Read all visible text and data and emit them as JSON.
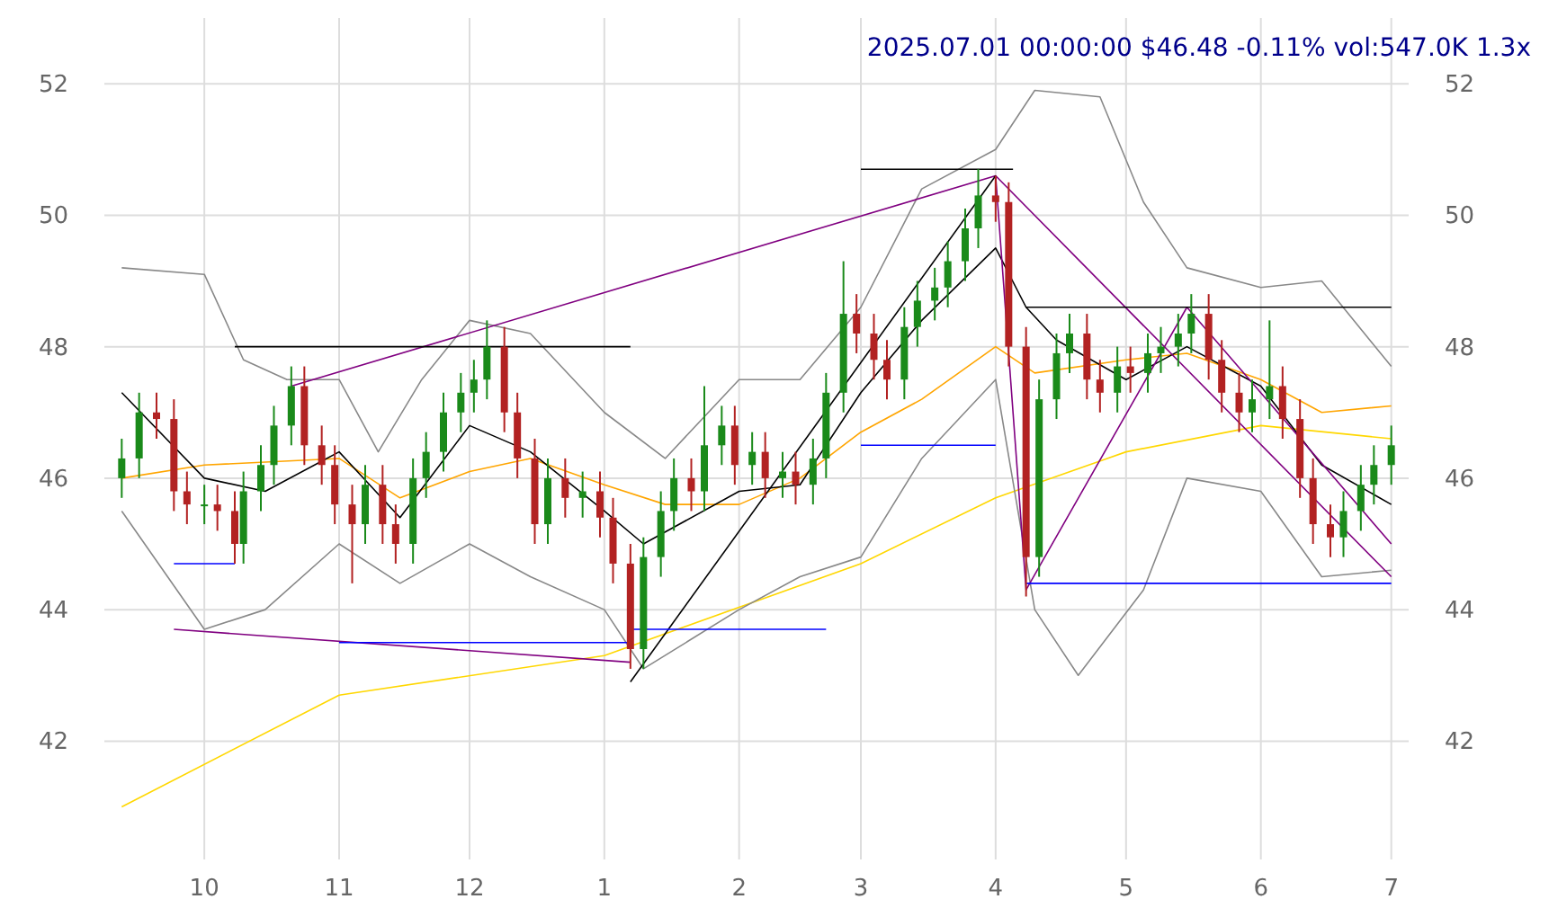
{
  "chart_data": {
    "type": "candlestick",
    "title": "2025.07.01 00:00:00 $46.48 -0.11% vol:547.0K 1.3x",
    "x": [
      "2024-09-12",
      "2024-09-16",
      "2024-09-20",
      "2024-09-24",
      "2024-09-27",
      "2024-10-01",
      "2024-10-04",
      "2024-10-08",
      "2024-10-10",
      "2024-10-14",
      "2024-10-17",
      "2024-10-21",
      "2024-10-24",
      "2024-10-28",
      "2024-10-31",
      "2024-11-04",
      "2024-11-07",
      "2024-11-11",
      "2024-11-14",
      "2024-11-18",
      "2024-11-21",
      "2024-11-25",
      "2024-11-29",
      "2024-12-02",
      "2024-12-05",
      "2024-12-09",
      "2024-12-12",
      "2024-12-16",
      "2024-12-19",
      "2024-12-23",
      "2024-12-27",
      "2024-12-31",
      "2025-01-03",
      "2025-01-07",
      "2025-01-10",
      "2025-01-14",
      "2025-01-17",
      "2025-01-21",
      "2025-01-24",
      "2025-01-28",
      "2025-01-31",
      "2025-02-04",
      "2025-02-07",
      "2025-02-11",
      "2025-02-14",
      "2025-02-18",
      "2025-02-21",
      "2025-02-25",
      "2025-02-28",
      "2025-03-04",
      "2025-03-07",
      "2025-03-11",
      "2025-03-14",
      "2025-03-18",
      "2025-03-21",
      "2025-03-25",
      "2025-03-28",
      "2025-04-01",
      "2025-04-04",
      "2025-04-08",
      "2025-04-11",
      "2025-04-15",
      "2025-04-18",
      "2025-04-22",
      "2025-04-25",
      "2025-04-29",
      "2025-05-02",
      "2025-05-06",
      "2025-05-09",
      "2025-05-13",
      "2025-05-16",
      "2025-05-20",
      "2025-05-23",
      "2025-05-27",
      "2025-05-30",
      "2025-06-03",
      "2025-06-06",
      "2025-06-10",
      "2025-06-13",
      "2025-06-17",
      "2025-06-20",
      "2025-06-24",
      "2025-06-27",
      "2025-07-01"
    ],
    "ohlc": [
      [
        46.0,
        46.6,
        45.7,
        46.3
      ],
      [
        46.3,
        47.3,
        46.0,
        47.0
      ],
      [
        47.0,
        47.3,
        46.6,
        46.9
      ],
      [
        46.9,
        47.2,
        45.5,
        45.8
      ],
      [
        45.8,
        46.1,
        45.3,
        45.6
      ],
      [
        45.6,
        45.9,
        45.3,
        45.6
      ],
      [
        45.6,
        45.9,
        45.2,
        45.5
      ],
      [
        45.5,
        45.8,
        44.7,
        45.0
      ],
      [
        45.0,
        46.1,
        44.7,
        45.8
      ],
      [
        45.8,
        46.5,
        45.5,
        46.2
      ],
      [
        46.2,
        47.1,
        45.9,
        46.8
      ],
      [
        46.8,
        47.7,
        46.5,
        47.4
      ],
      [
        47.4,
        47.7,
        46.2,
        46.5
      ],
      [
        46.5,
        46.8,
        45.9,
        46.2
      ],
      [
        46.2,
        46.5,
        45.3,
        45.6
      ],
      [
        45.6,
        45.9,
        44.4,
        45.3
      ],
      [
        45.3,
        46.2,
        45.0,
        45.9
      ],
      [
        45.9,
        46.2,
        45.0,
        45.3
      ],
      [
        45.3,
        45.6,
        44.7,
        45.0
      ],
      [
        45.0,
        46.3,
        44.7,
        46.0
      ],
      [
        46.0,
        46.7,
        45.7,
        46.4
      ],
      [
        46.4,
        47.3,
        46.1,
        47.0
      ],
      [
        47.0,
        47.6,
        46.7,
        47.3
      ],
      [
        47.3,
        47.8,
        47.0,
        47.5
      ],
      [
        47.5,
        48.4,
        47.2,
        48.0
      ],
      [
        48.0,
        48.3,
        46.7,
        47.0
      ],
      [
        47.0,
        47.3,
        46.0,
        46.3
      ],
      [
        46.3,
        46.6,
        45.0,
        45.3
      ],
      [
        45.3,
        46.3,
        45.0,
        46.0
      ],
      [
        46.0,
        46.3,
        45.4,
        45.7
      ],
      [
        45.7,
        46.1,
        45.4,
        45.8
      ],
      [
        45.8,
        46.1,
        45.1,
        45.4
      ],
      [
        45.4,
        45.7,
        44.4,
        44.7
      ],
      [
        44.7,
        45.0,
        43.1,
        43.4
      ],
      [
        43.4,
        45.1,
        43.1,
        44.8
      ],
      [
        44.8,
        45.8,
        44.5,
        45.5
      ],
      [
        45.5,
        46.3,
        45.2,
        46.0
      ],
      [
        46.0,
        46.3,
        45.5,
        45.8
      ],
      [
        45.8,
        47.4,
        45.5,
        46.5
      ],
      [
        46.5,
        47.1,
        46.2,
        46.8
      ],
      [
        46.8,
        47.1,
        45.9,
        46.2
      ],
      [
        46.2,
        46.7,
        45.9,
        46.4
      ],
      [
        46.4,
        46.7,
        45.7,
        46.0
      ],
      [
        46.0,
        46.4,
        45.7,
        46.1
      ],
      [
        46.1,
        46.4,
        45.6,
        45.9
      ],
      [
        45.9,
        46.6,
        45.6,
        46.3
      ],
      [
        46.3,
        47.6,
        46.0,
        47.3
      ],
      [
        47.3,
        49.3,
        47.0,
        48.5
      ],
      [
        48.5,
        48.8,
        47.9,
        48.2
      ],
      [
        48.2,
        48.5,
        47.5,
        47.8
      ],
      [
        47.8,
        48.1,
        47.2,
        47.5
      ],
      [
        47.5,
        48.6,
        47.2,
        48.3
      ],
      [
        48.3,
        49.0,
        48.0,
        48.7
      ],
      [
        48.7,
        49.2,
        48.4,
        48.9
      ],
      [
        48.9,
        49.6,
        48.6,
        49.3
      ],
      [
        49.3,
        50.1,
        49.0,
        49.8
      ],
      [
        49.8,
        50.7,
        49.5,
        50.3
      ],
      [
        50.3,
        50.6,
        49.9,
        50.2
      ],
      [
        50.2,
        50.5,
        47.7,
        48.0
      ],
      [
        48.0,
        48.3,
        44.2,
        44.8
      ],
      [
        44.8,
        47.5,
        44.5,
        47.2
      ],
      [
        47.2,
        48.2,
        46.9,
        47.9
      ],
      [
        47.9,
        48.5,
        47.6,
        48.2
      ],
      [
        48.2,
        48.5,
        47.2,
        47.5
      ],
      [
        47.5,
        47.8,
        47.0,
        47.3
      ],
      [
        47.3,
        48.0,
        47.0,
        47.7
      ],
      [
        47.7,
        48.0,
        47.3,
        47.6
      ],
      [
        47.6,
        48.2,
        47.3,
        47.9
      ],
      [
        47.9,
        48.3,
        47.6,
        48.0
      ],
      [
        48.0,
        48.5,
        47.7,
        48.2
      ],
      [
        48.2,
        48.8,
        47.9,
        48.5
      ],
      [
        48.5,
        48.8,
        47.5,
        47.8
      ],
      [
        47.8,
        48.1,
        47.0,
        47.3
      ],
      [
        47.3,
        47.6,
        46.7,
        47.0
      ],
      [
        47.0,
        47.5,
        46.7,
        47.2
      ],
      [
        47.2,
        48.4,
        46.9,
        47.4
      ],
      [
        47.4,
        47.7,
        46.6,
        46.9
      ],
      [
        46.9,
        47.2,
        45.7,
        46.0
      ],
      [
        46.0,
        46.3,
        45.0,
        45.3
      ],
      [
        45.3,
        45.6,
        44.8,
        45.1
      ],
      [
        45.1,
        45.8,
        44.8,
        45.5
      ],
      [
        45.5,
        46.2,
        45.2,
        45.9
      ],
      [
        45.9,
        46.5,
        45.6,
        46.2
      ],
      [
        46.2,
        46.8,
        45.9,
        46.5
      ]
    ],
    "series": [
      {
        "type": "line",
        "color": "#ffd700",
        "x": [
          "2024-09-12",
          "2024-11-01",
          "2025-01-01",
          "2025-03-01",
          "2025-04-01",
          "2025-05-01",
          "2025-06-01",
          "2025-07-01"
        ],
        "values": [
          41.0,
          42.7,
          43.3,
          44.7,
          45.7,
          46.4,
          46.8,
          46.6
        ]
      },
      {
        "type": "line",
        "color": "#ffa500",
        "x": [
          "2024-09-12",
          "2024-10-01",
          "2024-11-01",
          "2024-11-15",
          "2024-12-01",
          "2024-12-15",
          "2025-01-01",
          "2025-01-15",
          "2025-02-01",
          "2025-02-15",
          "2025-03-01",
          "2025-03-15",
          "2025-04-01",
          "2025-04-10",
          "2025-05-01",
          "2025-05-15",
          "2025-06-01",
          "2025-06-15",
          "2025-07-01"
        ],
        "values": [
          46.0,
          46.2,
          46.3,
          45.7,
          46.1,
          46.3,
          45.9,
          45.6,
          45.6,
          46.0,
          46.7,
          47.2,
          48.0,
          47.6,
          47.8,
          47.9,
          47.5,
          47.0,
          47.1
        ]
      },
      {
        "type": "line",
        "color": "#000000",
        "x": [
          "2024-09-12",
          "2024-10-01",
          "2024-10-15",
          "2024-11-01",
          "2024-11-15",
          "2024-12-01",
          "2024-12-15",
          "2025-01-01",
          "2025-01-10",
          "2025-02-01",
          "2025-02-15",
          "2025-03-01",
          "2025-03-15",
          "2025-04-01",
          "2025-04-08",
          "2025-04-15",
          "2025-05-01",
          "2025-05-15",
          "2025-06-01",
          "2025-06-15",
          "2025-07-01"
        ],
        "values": [
          47.3,
          46.0,
          45.8,
          46.4,
          45.4,
          46.8,
          46.4,
          45.5,
          45.0,
          45.8,
          45.9,
          47.3,
          48.4,
          49.5,
          48.6,
          48.1,
          47.5,
          48.0,
          47.4,
          46.2,
          45.6
        ]
      },
      {
        "type": "line",
        "color": "#888888",
        "x": [
          "2024-09-12",
          "2024-10-01",
          "2024-10-10",
          "2024-10-20",
          "2024-11-01",
          "2024-11-10",
          "2024-11-20",
          "2024-12-01",
          "2024-12-15",
          "2025-01-01",
          "2025-01-15",
          "2025-02-01",
          "2025-02-15",
          "2025-03-01",
          "2025-03-15",
          "2025-04-01",
          "2025-04-10",
          "2025-04-25",
          "2025-05-05",
          "2025-05-15",
          "2025-06-01",
          "2025-06-15",
          "2025-07-01"
        ],
        "values": [
          49.2,
          49.1,
          47.8,
          47.5,
          47.5,
          46.4,
          47.5,
          48.4,
          48.2,
          47.0,
          46.3,
          47.5,
          47.5,
          48.6,
          50.4,
          51.0,
          51.9,
          51.8,
          50.2,
          49.2,
          48.9,
          49.0,
          47.7
        ]
      },
      {
        "type": "line",
        "color": "#888888",
        "x": [
          "2024-09-12",
          "2024-10-01",
          "2024-10-15",
          "2024-11-01",
          "2024-11-15",
          "2024-12-01",
          "2024-12-15",
          "2025-01-01",
          "2025-01-10",
          "2025-02-01",
          "2025-02-15",
          "2025-03-01",
          "2025-03-15",
          "2025-04-01",
          "2025-04-10",
          "2025-04-20",
          "2025-05-05",
          "2025-05-15",
          "2025-06-01",
          "2025-06-15",
          "2025-07-01"
        ],
        "values": [
          45.5,
          43.7,
          44.0,
          45.0,
          44.4,
          45.0,
          44.5,
          44.0,
          43.1,
          44.0,
          44.5,
          44.8,
          46.3,
          47.5,
          44.0,
          43.0,
          44.3,
          46.0,
          45.8,
          44.5,
          44.6
        ]
      },
      {
        "type": "line",
        "color": "#800080",
        "x": [
          "2024-10-21",
          "2025-04-01",
          "2025-07-01"
        ],
        "values": [
          47.4,
          50.6,
          44.5
        ]
      },
      {
        "type": "line",
        "color": "#800080",
        "x": [
          "2024-09-24",
          "2025-01-07"
        ],
        "values": [
          43.7,
          43.2
        ]
      },
      {
        "type": "line",
        "color": "#800080",
        "x": [
          "2025-04-01",
          "2025-04-08",
          "2025-05-15",
          "2025-07-01"
        ],
        "values": [
          50.6,
          44.3,
          48.6,
          45.0
        ]
      },
      {
        "type": "line",
        "color": "#000000",
        "x": [
          "2025-01-07",
          "2025-04-01"
        ],
        "values": [
          42.9,
          50.6
        ]
      },
      {
        "type": "line",
        "color": "#000000",
        "x": [
          "2024-10-08",
          "2025-01-07"
        ],
        "values": [
          48.0,
          48.0
        ]
      },
      {
        "type": "line",
        "color": "#0000ff",
        "x": [
          "2024-11-01",
          "2025-01-07"
        ],
        "values": [
          43.5,
          43.5
        ]
      },
      {
        "type": "line",
        "color": "#0000ff",
        "x": [
          "2025-01-07",
          "2025-02-21"
        ],
        "values": [
          43.7,
          43.7
        ]
      },
      {
        "type": "line",
        "color": "#000000",
        "x": [
          "2025-03-01",
          "2025-04-05"
        ],
        "values": [
          50.7,
          50.7
        ]
      },
      {
        "type": "line",
        "color": "#0000ff",
        "x": [
          "2025-03-01",
          "2025-04-01"
        ],
        "values": [
          46.5,
          46.5
        ]
      },
      {
        "type": "line",
        "color": "#000000",
        "x": [
          "2025-04-08",
          "2025-07-01"
        ],
        "values": [
          48.6,
          48.6
        ]
      },
      {
        "type": "line",
        "color": "#0000ff",
        "x": [
          "2025-04-08",
          "2025-07-01"
        ],
        "values": [
          44.4,
          44.4
        ]
      },
      {
        "type": "line",
        "color": "#0000ff",
        "x": [
          "2024-09-24",
          "2024-10-08"
        ],
        "values": [
          44.7,
          44.7
        ]
      }
    ],
    "xlim": [
      "2024-09-08",
      "2025-07-05"
    ],
    "xticks": [
      {
        "value": "2024-10-01",
        "label": "10"
      },
      {
        "value": "2024-11-01",
        "label": "11"
      },
      {
        "value": "2024-12-01",
        "label": "12"
      },
      {
        "value": "2025-01-01",
        "label": "1"
      },
      {
        "value": "2025-02-01",
        "label": "2"
      },
      {
        "value": "2025-03-01",
        "label": "3"
      },
      {
        "value": "2025-04-01",
        "label": "4"
      },
      {
        "value": "2025-05-01",
        "label": "5"
      },
      {
        "value": "2025-06-01",
        "label": "6"
      },
      {
        "value": "2025-07-01",
        "label": "7"
      }
    ],
    "ylim": [
      40.2,
      53
    ],
    "yticks": [
      42,
      44,
      46,
      48,
      50,
      52
    ],
    "y2lim": [
      40.2,
      53
    ],
    "y2ticks": [
      42,
      44,
      46,
      48,
      50,
      52
    ],
    "grid": true
  }
}
